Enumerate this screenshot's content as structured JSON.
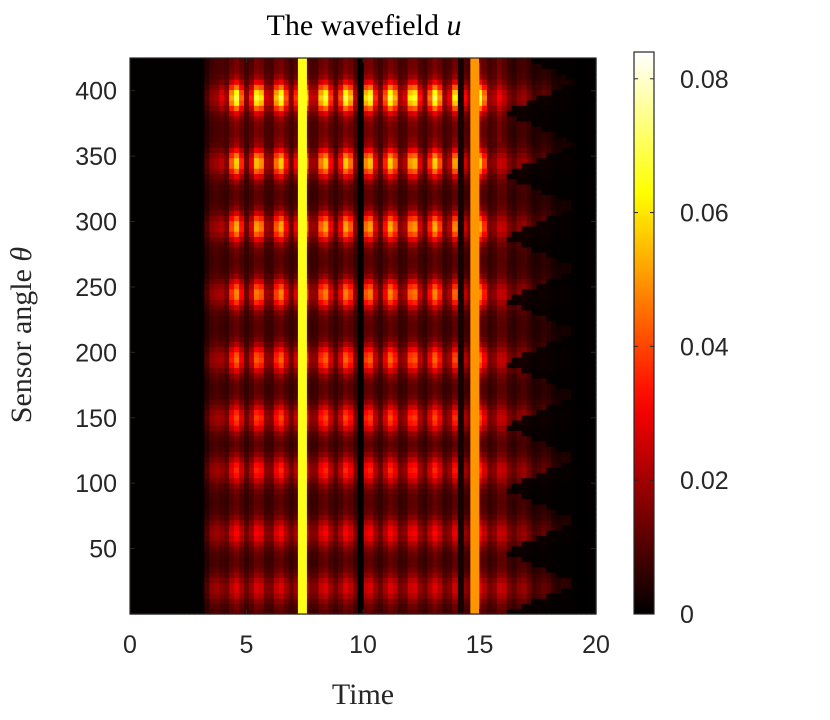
{
  "chart_data": {
    "type": "heatmap",
    "title": "The wavefield",
    "title_symbol": "u",
    "xlabel": "Time",
    "ylabel": "Sensor angle",
    "ylabel_symbol": "θ",
    "xlim": [
      0,
      20
    ],
    "ylim": [
      0,
      425
    ],
    "xticks": [
      "0",
      "5",
      "10",
      "15",
      "20"
    ],
    "yticks": [
      "50",
      "100",
      "150",
      "200",
      "250",
      "300",
      "350",
      "400"
    ],
    "colorbar": {
      "colormap": "hot",
      "range": [
        0,
        0.084
      ],
      "ticks": [
        "0",
        "0.02",
        "0.04",
        "0.06",
        "0.08"
      ]
    },
    "features": {
      "signal_onset_time": 3.1,
      "bright_vertical_lines": [
        {
          "time": 7.4,
          "value": 0.065
        },
        {
          "time": 14.8,
          "value": 0.05
        }
      ],
      "dark_vertical_lines": [
        {
          "time": 9.9,
          "value": 0.0
        },
        {
          "time": 14.2,
          "value": 0.003
        }
      ],
      "bright_horizontal_bands_sensor_angle": [
        20,
        62,
        110,
        150,
        195,
        245,
        296,
        345,
        395
      ],
      "peak_value": 0.084,
      "signal_end_time": 19.6
    }
  }
}
